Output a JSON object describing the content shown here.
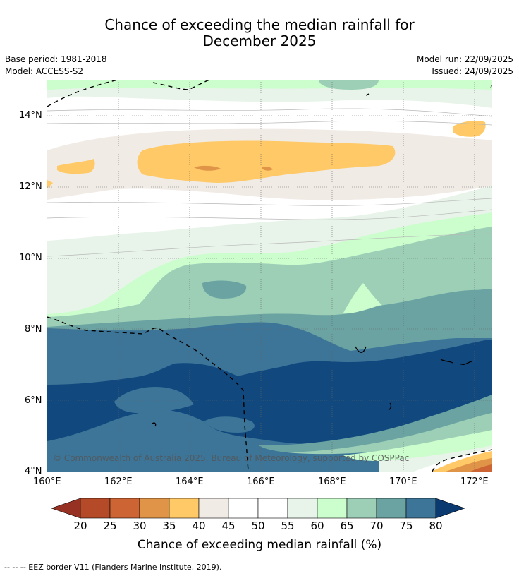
{
  "title": {
    "line1": "Chance of exceeding the median rainfall for",
    "line2": "December 2025"
  },
  "meta": {
    "base_period": "Base period: 1981-2018",
    "model": "Model: ACCESS-S2",
    "model_run": "Model run: 22/09/2025",
    "issued": "Issued: 24/09/2025"
  },
  "map": {
    "lat_ticks": [
      "14°N",
      "12°N",
      "10°N",
      "8°N",
      "6°N",
      "4°N"
    ],
    "lon_ticks": [
      "160°E",
      "162°E",
      "164°E",
      "166°E",
      "168°E",
      "170°E",
      "172°E"
    ],
    "copyright": "© Commonwealth of Australia 2025, Bureau of Meteorology, supported by COSPPac"
  },
  "colorbar": {
    "labels": [
      "20",
      "25",
      "30",
      "35",
      "40",
      "45",
      "50",
      "55",
      "60",
      "65",
      "70",
      "75",
      "80"
    ],
    "colors": [
      "#b44a27",
      "#cd6434",
      "#e09448",
      "#fec966",
      "#f1ebe6",
      "#ffffff",
      "#ffffff",
      "#e8f4e9",
      "#ccfdcd",
      "#9ccfb6",
      "#6aa3a2",
      "#3d7598",
      "#11497f"
    ],
    "low_color": "#973123",
    "high_color": "#0b3a70",
    "title": "Chance of exceeding median rainfall (%)"
  },
  "footer": "--  --  -- EEZ border V11 (Flanders Marine Institute, 2019)."
}
